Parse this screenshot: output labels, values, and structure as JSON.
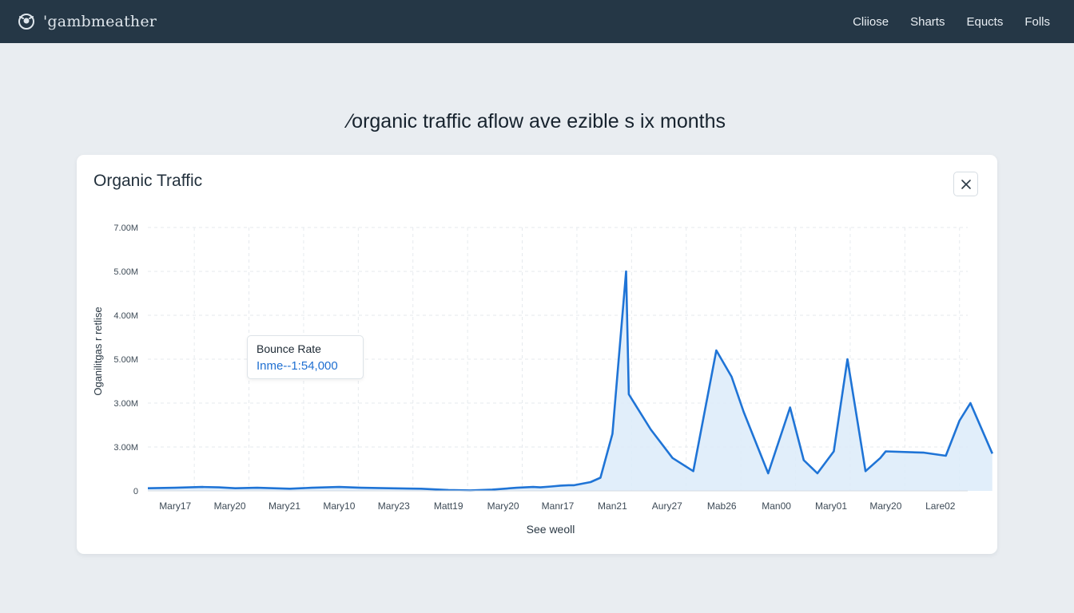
{
  "app": {
    "brand_name": "'gambmeather",
    "brand_icon": "logo-icon",
    "nav": [
      "Cliiose",
      "Sharts",
      "Equcts",
      "Folls"
    ]
  },
  "headline": "⁄organic traffic aflow ave ezible s ix months",
  "card": {
    "title": "Organic Traffic",
    "close_icon": "close-icon"
  },
  "tooltip": {
    "title": "Bounce Rate",
    "value": "Inme--1:54,000"
  },
  "colors": {
    "line": "#1f74d6",
    "fill": "#dcebf9",
    "topbar": "#253746",
    "grid": "#e6eaee"
  },
  "chart_data": {
    "type": "area",
    "ylabel": "Oganilitgas r retlise",
    "xlabel": "See weoll",
    "y_tick_labels": [
      "0",
      "3.00M",
      "3.00M",
      "5.00M",
      "4.00M",
      "5.00M",
      "7.00M"
    ],
    "y_ticks": [
      0,
      1,
      2,
      3,
      4,
      5,
      6
    ],
    "ylim": [
      0,
      6
    ],
    "x_tick_labels": [
      "Mary17",
      "Mary20",
      "Mary21",
      "Mary10",
      "Mary23",
      "Matt19",
      "Mary20",
      "Manr17",
      "Man21",
      "Aury27",
      "Mab26",
      "Man00",
      "Mary01",
      "Mary20",
      "Lare02"
    ],
    "grid": true,
    "series": [
      {
        "x": [
          0,
          0.5,
          0.75,
          1.0,
          1.3,
          1.6,
          2.0,
          2.3,
          2.6,
          3.0,
          3.5,
          3.9,
          4.4,
          5.0,
          5.5,
          5.9,
          6.3,
          6.75,
          7.05,
          7.18,
          7.38,
          7.55,
          7.7,
          7.8,
          8.1,
          8.28,
          8.5,
          8.75,
          8.8,
          9.2,
          9.6,
          9.98,
          10.4,
          10.68,
          10.9,
          11.35,
          11.75,
          12.0,
          12.25,
          12.55,
          12.8,
          13.13,
          13.4,
          13.5,
          14.2,
          14.6,
          14.85,
          15.05,
          15.45
        ],
        "y": [
          0.06,
          0.07,
          0.08,
          0.09,
          0.08,
          0.06,
          0.07,
          0.06,
          0.05,
          0.07,
          0.09,
          0.07,
          0.06,
          0.05,
          0.02,
          0.01,
          0.03,
          0.07,
          0.09,
          0.08,
          0.1,
          0.12,
          0.13,
          0.13,
          0.2,
          0.3,
          1.3,
          5.0,
          2.2,
          1.4,
          0.75,
          0.45,
          3.2,
          2.6,
          1.8,
          0.4,
          1.9,
          0.7,
          0.4,
          0.9,
          3.0,
          0.45,
          0.75,
          0.9,
          0.87,
          0.8,
          1.6,
          2.0,
          0.85
        ]
      }
    ]
  }
}
